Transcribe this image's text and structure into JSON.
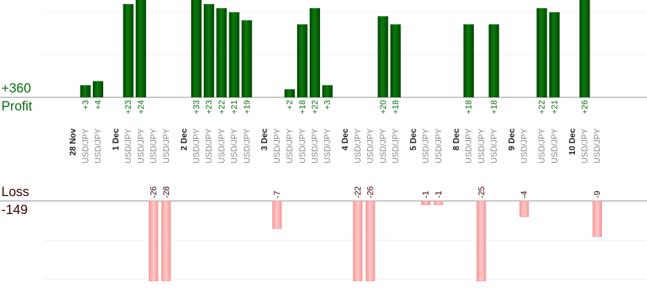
{
  "chart_data": {
    "type": "bar",
    "pair": "USD/JPY",
    "colors": {
      "profit": "#0e6a0e",
      "profit_dark": "#004700",
      "loss": "#ffb3b3",
      "loss_edge": "#e68c8c",
      "profit_text": "#0a6e0a",
      "loss_text": "#3a0000",
      "axis": "#888888",
      "grid": "#eeeeee",
      "date_text": "#222222",
      "pair_text": "#888888"
    },
    "profit": {
      "label": "Profit",
      "total": "+360"
    },
    "loss": {
      "label": "Loss",
      "total": "-149"
    },
    "ylim_profit": [
      0,
      24
    ],
    "ylim_loss": [
      -20,
      0
    ],
    "slots": [
      {
        "date": "28 Nov"
      },
      {
        "value": 3,
        "label": "+3"
      },
      {
        "value": 4,
        "label": "+4"
      },
      {
        "gap": true
      },
      {
        "date": "1 Dec"
      },
      {
        "value": 23,
        "label": "+23"
      },
      {
        "value": 24,
        "label": "+24"
      },
      {
        "value": -26,
        "label": "-26"
      },
      {
        "value": -28,
        "label": "-28"
      },
      {
        "gap": true
      },
      {
        "date": "2 Dec"
      },
      {
        "value": 33,
        "label": "+33"
      },
      {
        "value": 23,
        "label": "+23"
      },
      {
        "value": 22,
        "label": "+22"
      },
      {
        "value": 21,
        "label": "+21"
      },
      {
        "value": 19,
        "label": "+19"
      },
      {
        "gap": true
      },
      {
        "date": "3 Dec"
      },
      {
        "value": -7,
        "label": "-7"
      },
      {
        "value": 2,
        "label": "+2"
      },
      {
        "value": 18,
        "label": "+18"
      },
      {
        "value": 22,
        "label": "+22"
      },
      {
        "value": 3,
        "label": "+3"
      },
      {
        "gap": true
      },
      {
        "date": "4 Dec"
      },
      {
        "value": -22,
        "label": "-22"
      },
      {
        "value": -26,
        "label": "-26"
      },
      {
        "value": 20,
        "label": "+20"
      },
      {
        "value": 18,
        "label": "+18"
      },
      {
        "gap": true
      },
      {
        "date": "5 Dec"
      },
      {
        "value": -1,
        "label": "-1"
      },
      {
        "value": -1,
        "label": "-1"
      },
      {
        "gap": true
      },
      {
        "date": "8 Dec"
      },
      {
        "value": 18,
        "label": "+18"
      },
      {
        "value": -25,
        "label": "-25"
      },
      {
        "value": 18,
        "label": "+18"
      },
      {
        "gap": true
      },
      {
        "date": "9 Dec"
      },
      {
        "value": -4,
        "label": "-4"
      },
      {
        "gap": true
      },
      {
        "value": 22,
        "label": "+22"
      },
      {
        "value": 21,
        "label": "+21"
      },
      {
        "gap": true
      },
      {
        "date": "10 Dec"
      },
      {
        "value": 26,
        "label": "+26"
      },
      {
        "value": -9,
        "label": "-9"
      }
    ]
  }
}
